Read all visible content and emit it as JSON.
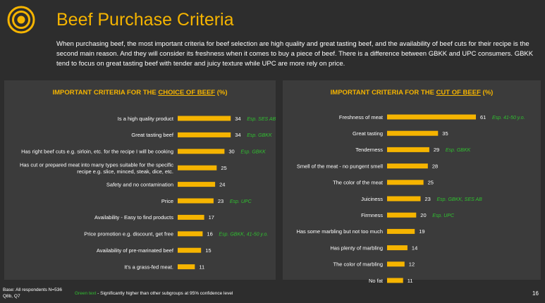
{
  "header": {
    "title": "Beef Purchase Criteria",
    "description": "When purchasing beef, the most important criteria for beef selection are high quality and great tasting beef, and the availability of beef cuts for their recipe is the second main reason. And they will consider its freshness when it comes to buy a piece of beef. There is a difference between GBKK and UPC consumers. GBKK tend to focus on great tasting beef with tender and juicy texture while UPC are more rely on price."
  },
  "colors": {
    "accent": "#f5b400",
    "bar": "#f5b400",
    "note_green": "#30c030",
    "background": "#2d2d2d",
    "panel": "#3b3b3b"
  },
  "left_panel": {
    "title_prefix": "IMPORTANT CRITERIA FOR THE ",
    "title_underlined": "CHOICE OF BEEF",
    "title_suffix": " (%)"
  },
  "right_panel": {
    "title_prefix": "IMPORTANT CRITERIA FOR THE ",
    "title_underlined": "CUT OF BEEF",
    "title_suffix": " (%)"
  },
  "chart_data": [
    {
      "type": "bar",
      "orientation": "horizontal",
      "title": "IMPORTANT CRITERIA FOR THE CHOICE OF BEEF (%)",
      "xlim": [
        0,
        61
      ],
      "categories": [
        [
          "Is a high quality product"
        ],
        [
          "Great tasting beef"
        ],
        [
          "Has right beef cuts e.g. sirloin, etc. for the recipe I will be cooking"
        ],
        [
          "Has cut or prepared meat into many types suitable for the specific",
          "recipe e.g. slice, minced, steak, dice, etc."
        ],
        [
          "Safety and no contamination"
        ],
        [
          "Price"
        ],
        [
          "Availability - Easy to find products"
        ],
        [
          "Price promotion e.g. discount, get free"
        ],
        [
          "Availability of pre-marinated beef"
        ],
        [
          "It's a grass-fed meat."
        ]
      ],
      "values": [
        34,
        34,
        30,
        25,
        24,
        23,
        17,
        16,
        15,
        11
      ],
      "annotations": [
        "Esp. SES AB",
        "Esp. GBKK",
        "Esp. GBKK",
        "",
        "",
        "Esp. UPC",
        "",
        "Esp. GBKK, 41-50 y.o.",
        "",
        ""
      ]
    },
    {
      "type": "bar",
      "orientation": "horizontal",
      "title": "IMPORTANT CRITERIA FOR THE CUT OF BEEF (%)",
      "xlim": [
        0,
        61
      ],
      "categories": [
        [
          "Freshness of meat"
        ],
        [
          "Great tasting"
        ],
        [
          "Tenderness"
        ],
        [
          "Smell of the meat - no pungent smell"
        ],
        [
          "The color of the meat"
        ],
        [
          "Juiciness"
        ],
        [
          "Firmness"
        ],
        [
          "Has some marbling but not too much"
        ],
        [
          "Has plenty of marbling"
        ],
        [
          "The color of marbling"
        ],
        [
          "No fat"
        ]
      ],
      "values": [
        61,
        35,
        29,
        28,
        25,
        23,
        20,
        19,
        14,
        12,
        11
      ],
      "annotations": [
        "Esp. 41-50 y.o.",
        "",
        "Esp. GBKK",
        "",
        "",
        "Esp. GBKK, SES AB",
        "Esp. UPC",
        "",
        "",
        "",
        ""
      ]
    }
  ],
  "footer": {
    "base_line1": "Base: All respondents N=536",
    "base_line2": "Q8b, Q7",
    "note_green": "Green text",
    "note_rest": " - Significantly higher than other subgroups at 95% confidence level",
    "page_number": "16"
  }
}
